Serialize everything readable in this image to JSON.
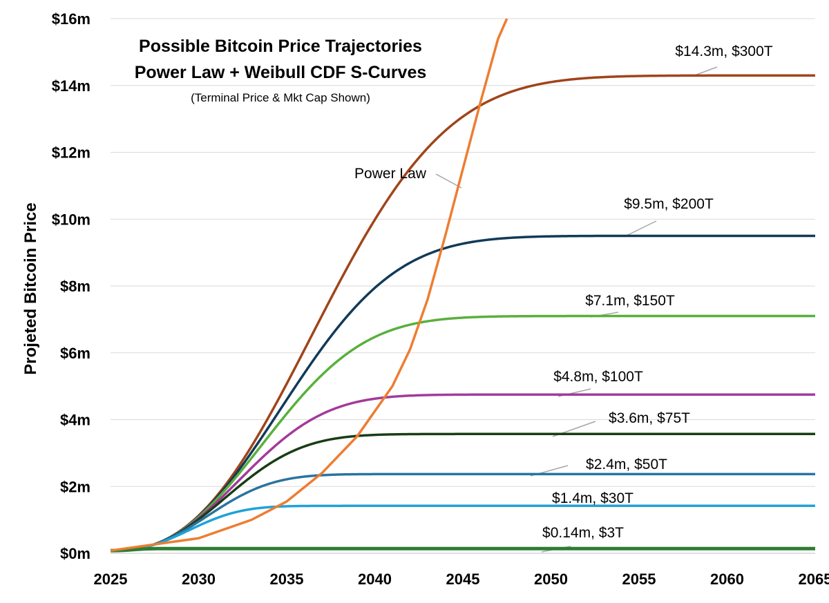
{
  "chart_data": {
    "type": "line",
    "title": "Possible Bitcoin Price Trajectories",
    "subtitle": "Power Law + Weibull CDF S-Curves",
    "note": "(Terminal Price & Mkt Cap Shown)",
    "xlabel": "",
    "ylabel": "Projeted Bitcoin Price",
    "xlim": [
      2025,
      2065
    ],
    "ylim": [
      0,
      16
    ],
    "x_ticks": [
      2025,
      2030,
      2035,
      2040,
      2045,
      2050,
      2055,
      2060,
      2065
    ],
    "y_ticks": [
      {
        "value": 0,
        "label": "$0m"
      },
      {
        "value": 2,
        "label": "$2m"
      },
      {
        "value": 4,
        "label": "$4m"
      },
      {
        "value": 6,
        "label": "$6m"
      },
      {
        "value": 8,
        "label": "$8m"
      },
      {
        "value": 10,
        "label": "$10m"
      },
      {
        "value": 12,
        "label": "$12m"
      },
      {
        "value": 14,
        "label": "$14m"
      },
      {
        "value": 16,
        "label": "$16m"
      }
    ],
    "grid": true,
    "power_law": {
      "name": "Power Law",
      "label": "Power Law",
      "color": "#ED7D31",
      "x": [
        2025,
        2030,
        2033,
        2035,
        2037,
        2039,
        2041,
        2042,
        2043,
        2044,
        2045,
        2046,
        2047,
        2047.5
      ],
      "values": [
        0.08,
        0.45,
        1.0,
        1.55,
        2.4,
        3.5,
        5.0,
        6.1,
        7.6,
        9.5,
        11.5,
        13.5,
        15.4,
        16.0
      ]
    },
    "series": [
      {
        "name": "S-curve $300T",
        "label": "$14.3m, $300T",
        "terminal": 14.3,
        "color": "#A0441A"
      },
      {
        "name": "S-curve $200T",
        "label": "$9.5m, $200T",
        "terminal": 9.5,
        "color": "#123A58"
      },
      {
        "name": "S-curve $150T",
        "label": "$7.1m, $150T",
        "terminal": 7.1,
        "color": "#58B03C"
      },
      {
        "name": "S-curve $100T",
        "label": "$4.8m, $100T",
        "terminal": 4.75,
        "color": "#A33A9A"
      },
      {
        "name": "S-curve $75T",
        "label": "$3.6m, $75T",
        "terminal": 3.57,
        "color": "#173E14"
      },
      {
        "name": "S-curve $50T",
        "label": "$2.4m, $50T",
        "terminal": 2.37,
        "color": "#2874A0"
      },
      {
        "name": "S-curve $30T",
        "label": "$1.4m, $30T",
        "terminal": 1.42,
        "color": "#1FA2D8"
      },
      {
        "name": "S-curve $3T",
        "label": "$0.14m, $3T",
        "terminal": 0.14,
        "color": "#2E7D32"
      }
    ]
  }
}
